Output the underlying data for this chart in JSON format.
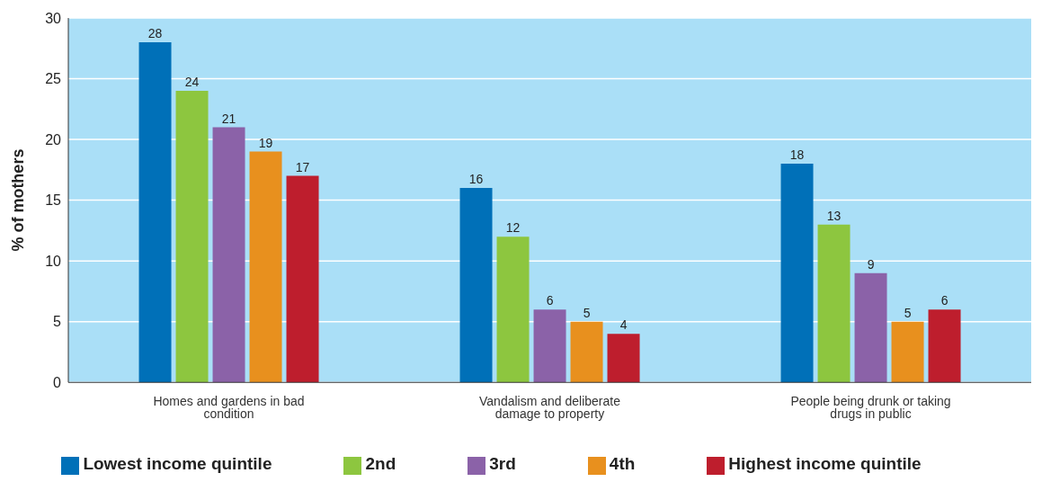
{
  "chart_data": {
    "type": "bar",
    "ylabel": "% of mothers",
    "categories": [
      "Homes and gardens in bad condition",
      "Vandalism and deliberate damage to property",
      "People being drunk or taking drugs in public"
    ],
    "series": [
      {
        "name": "Lowest income quintile",
        "color": "#0070b8",
        "values": [
          28,
          16,
          18
        ]
      },
      {
        "name": "2nd",
        "color": "#8dc63f",
        "values": [
          24,
          12,
          13
        ]
      },
      {
        "name": "3rd",
        "color": "#8b62a8",
        "values": [
          21,
          6,
          9
        ]
      },
      {
        "name": "4th",
        "color": "#e8901e",
        "values": [
          19,
          5,
          5
        ]
      },
      {
        "name": "Highest income quintile",
        "color": "#be1e2d",
        "values": [
          17,
          4,
          6
        ]
      }
    ],
    "ylim": [
      0,
      30
    ],
    "yticks": [
      0,
      5,
      10,
      15,
      20,
      25,
      30
    ],
    "grid": "y",
    "legend": "bottom",
    "data_labels": true
  }
}
